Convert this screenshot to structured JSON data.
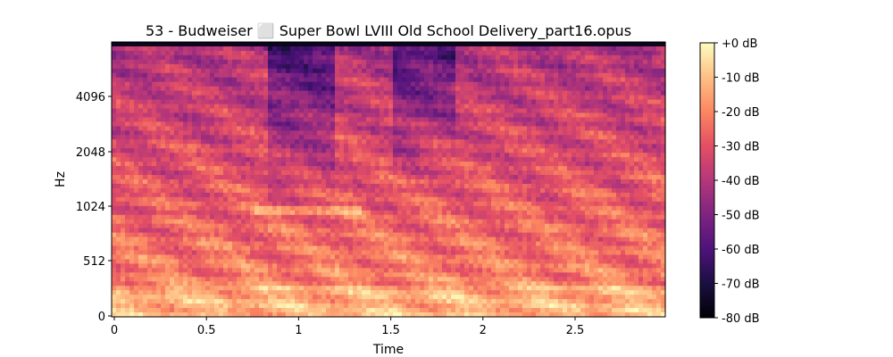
{
  "chart_data": {
    "type": "heatmap",
    "title": "53 - Budweiser ⬜ Super Bowl LVIII Old School Delivery_part16.opus",
    "xlabel": "Time",
    "ylabel": "Hz",
    "xlim": [
      0,
      3.0
    ],
    "y_scale": "log-like (mel)",
    "x_ticks": [
      {
        "value": 0,
        "label": "0"
      },
      {
        "value": 0.5,
        "label": "0.5"
      },
      {
        "value": 1,
        "label": "1"
      },
      {
        "value": 1.5,
        "label": "1.5"
      },
      {
        "value": 2,
        "label": "2"
      },
      {
        "value": 2.5,
        "label": "2.5"
      }
    ],
    "y_ticks": [
      {
        "value": 0,
        "label": "0"
      },
      {
        "value": 512,
        "label": "512"
      },
      {
        "value": 1024,
        "label": "1024"
      },
      {
        "value": 2048,
        "label": "2048"
      },
      {
        "value": 4096,
        "label": "4096"
      }
    ],
    "colorbar": {
      "colormap": "magma",
      "range": [
        -80,
        0
      ],
      "ticks": [
        {
          "value": 0,
          "label": "+0 dB"
        },
        {
          "value": -10,
          "label": "-10 dB"
        },
        {
          "value": -20,
          "label": "-20 dB"
        },
        {
          "value": -30,
          "label": "-30 dB"
        },
        {
          "value": -40,
          "label": "-40 dB"
        },
        {
          "value": -50,
          "label": "-50 dB"
        },
        {
          "value": -60,
          "label": "-60 dB"
        },
        {
          "value": -70,
          "label": "-70 dB"
        },
        {
          "value": -80,
          "label": "-80 dB"
        }
      ]
    },
    "grid": false
  }
}
